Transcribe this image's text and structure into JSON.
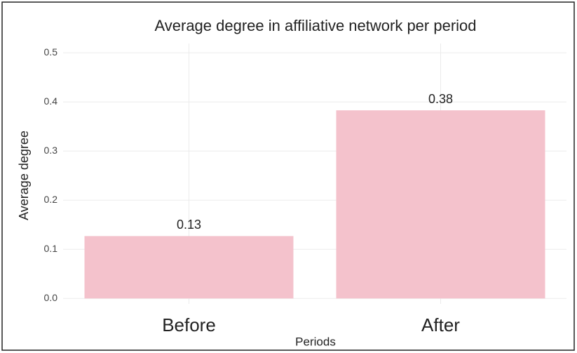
{
  "chart_data": {
    "type": "bar",
    "title": "Average degree in affiliative network per period",
    "xlabel": "Periods",
    "ylabel": "Average degree",
    "categories": [
      "Before",
      "After"
    ],
    "values": [
      0.127,
      0.383
    ],
    "value_labels": [
      "0.13",
      "0.38"
    ],
    "color": "#f4c2cc",
    "ylim": [
      -0.011,
      0.519
    ],
    "yticks": [
      {
        "value": 0,
        "label": "0.0"
      },
      0.1,
      0.2,
      0.3,
      0.4,
      0.5
    ],
    "grid": true
  }
}
